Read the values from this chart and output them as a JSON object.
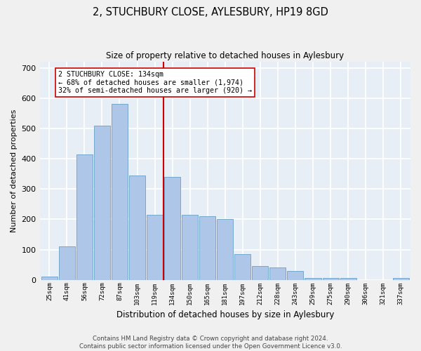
{
  "title": "2, STUCHBURY CLOSE, AYLESBURY, HP19 8GD",
  "subtitle": "Size of property relative to detached houses in Aylesbury",
  "xlabel": "Distribution of detached houses by size in Aylesbury",
  "ylabel": "Number of detached properties",
  "categories": [
    "25sqm",
    "41sqm",
    "56sqm",
    "72sqm",
    "87sqm",
    "103sqm",
    "119sqm",
    "134sqm",
    "150sqm",
    "165sqm",
    "181sqm",
    "197sqm",
    "212sqm",
    "228sqm",
    "243sqm",
    "259sqm",
    "275sqm",
    "290sqm",
    "306sqm",
    "321sqm",
    "337sqm"
  ],
  "bar_heights": [
    10,
    110,
    415,
    510,
    580,
    345,
    215,
    340,
    215,
    210,
    200,
    85,
    45,
    40,
    30,
    5,
    5,
    5,
    0,
    0,
    5
  ],
  "bar_color": "#aec6e8",
  "bar_edge_color": "#6a9fc8",
  "vline_color": "#cc0000",
  "vline_index": 7,
  "annotation_text": "2 STUCHBURY CLOSE: 134sqm\n← 68% of detached houses are smaller (1,974)\n32% of semi-detached houses are larger (920) →",
  "annotation_box_facecolor": "#ffffff",
  "annotation_box_edgecolor": "#cc0000",
  "ylim": [
    0,
    720
  ],
  "yticks": [
    0,
    100,
    200,
    300,
    400,
    500,
    600,
    700
  ],
  "bg_color": "#e8eef5",
  "grid_color": "#ffffff",
  "fig_facecolor": "#f0f0f0",
  "footer_line1": "Contains HM Land Registry data © Crown copyright and database right 2024.",
  "footer_line2": "Contains public sector information licensed under the Open Government Licence v3.0."
}
